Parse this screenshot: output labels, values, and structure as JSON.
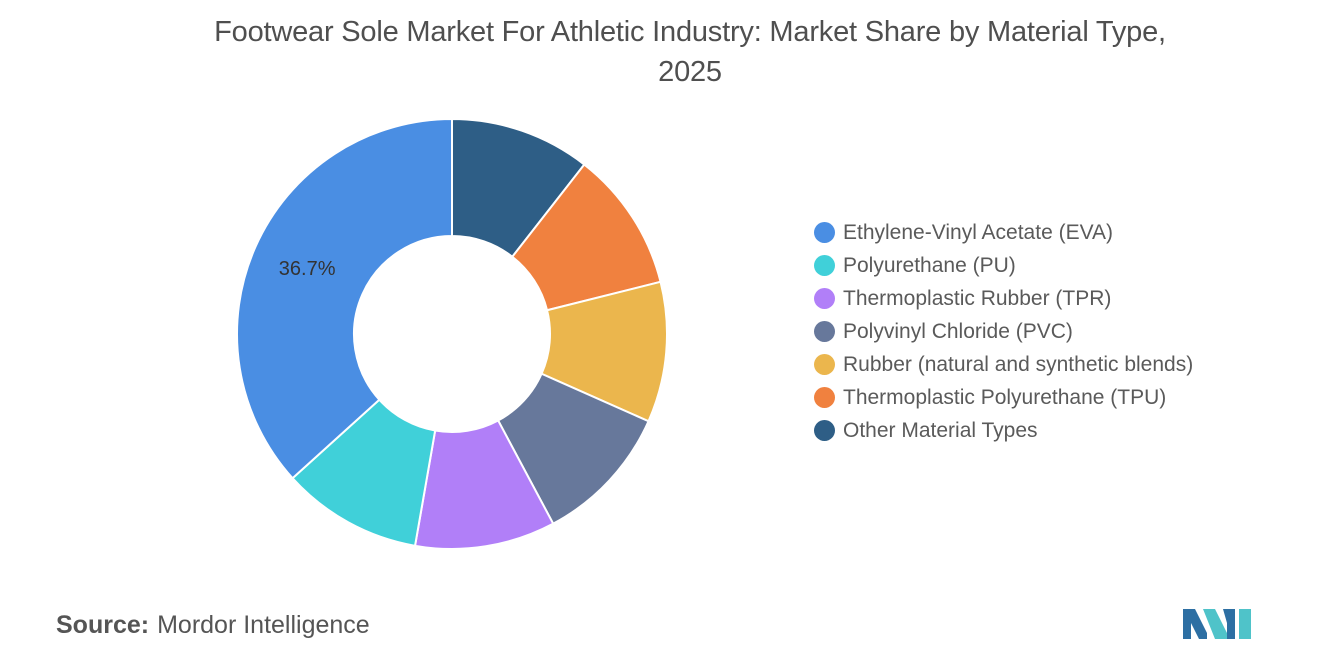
{
  "chart_data": {
    "type": "pie",
    "title_line1": "Footwear Sole Market For Athletic Industry: Market Share by Material Type,",
    "title_line2": "2025",
    "donut": true,
    "start_angle_deg": 0,
    "categories": [
      "Other Material Types",
      "Thermoplastic Polyurethane (TPU)",
      "Rubber (natural and synthetic blends)",
      "Polyvinyl Chloride (PVC)",
      "Thermoplastic Rubber (TPR)",
      "Polyurethane (PU)",
      "Ethylene-Vinyl Acetate (EVA)"
    ],
    "values": [
      10.55,
      10.55,
      10.55,
      10.55,
      10.55,
      10.55,
      36.7
    ],
    "colors": [
      "#2e5e86",
      "#f0813f",
      "#ebb64d",
      "#67789b",
      "#b17ff8",
      "#40d0d9",
      "#4a8ee3"
    ],
    "data_labels": [
      "",
      "",
      "",
      "",
      "",
      "",
      "36.7%"
    ],
    "legend": [
      {
        "label": "Ethylene-Vinyl Acetate (EVA)",
        "color": "#4a8ee3"
      },
      {
        "label": "Polyurethane (PU)",
        "color": "#40d0d9"
      },
      {
        "label": "Thermoplastic Rubber (TPR)",
        "color": "#b17ff8"
      },
      {
        "label": "Polyvinyl Chloride (PVC)",
        "color": "#67789b"
      },
      {
        "label": "Rubber (natural and synthetic blends)",
        "color": "#ebb64d"
      },
      {
        "label": "Thermoplastic Polyurethane (TPU)",
        "color": "#f0813f"
      },
      {
        "label": "Other Material Types",
        "color": "#2e5e86"
      }
    ],
    "legend_position": "right"
  },
  "source": {
    "key": "Source:",
    "value": "Mordor Intelligence"
  },
  "logo": {
    "colors": [
      "#2d6fa3",
      "#4fc3c9"
    ]
  }
}
